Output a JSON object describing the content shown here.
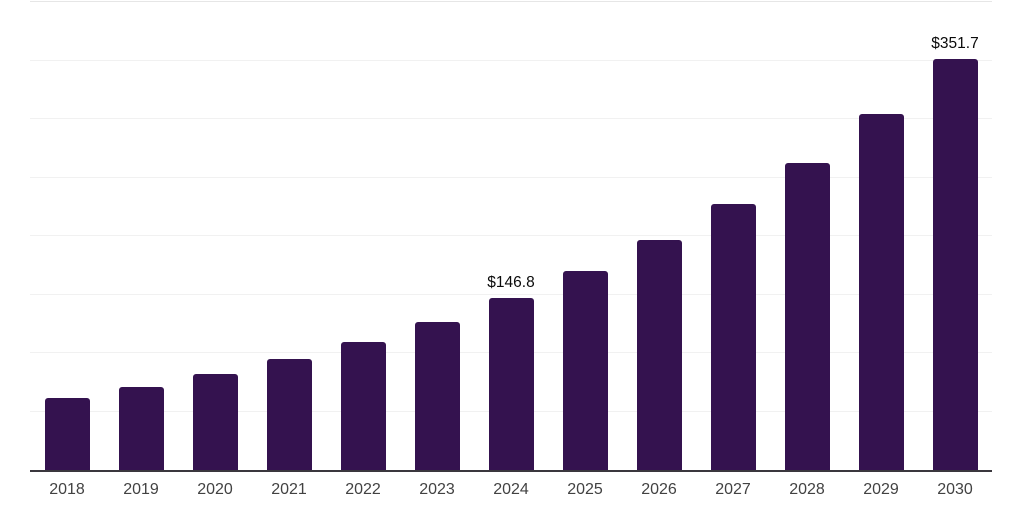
{
  "chart_data": {
    "type": "bar",
    "title": "",
    "xlabel": "",
    "ylabel": "",
    "categories": [
      "2018",
      "2019",
      "2020",
      "2021",
      "2022",
      "2023",
      "2024",
      "2025",
      "2026",
      "2027",
      "2028",
      "2029",
      "2030"
    ],
    "values": [
      61.3,
      70.9,
      82.0,
      94.8,
      109.7,
      126.9,
      146.8,
      169.8,
      196.4,
      227.2,
      262.8,
      304.0,
      351.7
    ],
    "data_labels": [
      "",
      "",
      "",
      "",
      "",
      "",
      "$146.8",
      "",
      "",
      "",
      "",
      "",
      "$351.7"
    ],
    "ylim": [
      0,
      400
    ],
    "gridline_step": 50,
    "grid": true,
    "legend": "none",
    "y_axis_ticks_visible": false,
    "colors": {
      "bar": "#34124f",
      "axis_line": "#3a373d",
      "gridline": "#f1f1f1",
      "top_gridline": "#e6e6e6",
      "tick_label": "#424242",
      "data_label": "#0b0b0b",
      "background": "#ffffff"
    }
  }
}
